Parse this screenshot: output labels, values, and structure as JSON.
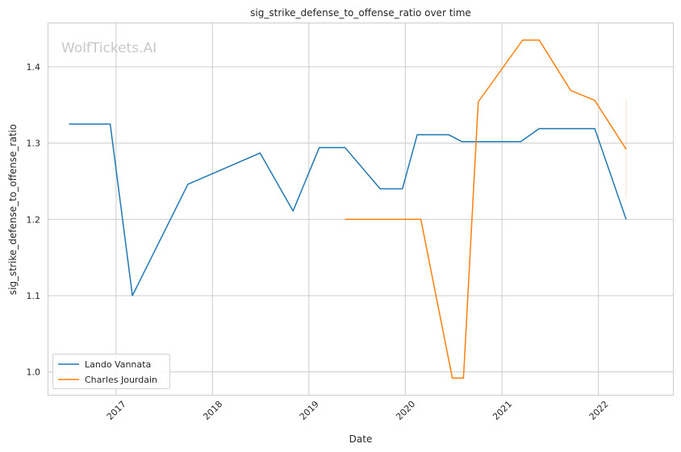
{
  "chart_data": {
    "type": "line",
    "title": "sig_strike_defense_to_offense_ratio over time",
    "xlabel": "Date",
    "ylabel": "sig_strike_defense_to_offense_ratio",
    "watermark": "WolfTickets.AI",
    "x_ticks": [
      "2017",
      "2018",
      "2019",
      "2020",
      "2021",
      "2022"
    ],
    "y_ticks": [
      "1.0",
      "1.1",
      "1.2",
      "1.3",
      "1.4"
    ],
    "ylim": [
      0.97,
      1.457
    ],
    "xlim": [
      "2016-04-20",
      "2022-10-10"
    ],
    "grid": true,
    "legend_position": "lower-left",
    "series": [
      {
        "name": "Lando Vannata",
        "color": "#1f77b4",
        "points": [
          {
            "x": "2016-07-07",
            "y": 1.325
          },
          {
            "x": "2016-12-10",
            "y": 1.325
          },
          {
            "x": "2017-03-04",
            "y": 1.1
          },
          {
            "x": "2017-09-30",
            "y": 1.246
          },
          {
            "x": "2018-06-30",
            "y": 1.287
          },
          {
            "x": "2018-11-02",
            "y": 1.211
          },
          {
            "x": "2019-02-09",
            "y": 1.294
          },
          {
            "x": "2019-05-18",
            "y": 1.294
          },
          {
            "x": "2019-09-28",
            "y": 1.24
          },
          {
            "x": "2019-12-21",
            "y": 1.24
          },
          {
            "x": "2020-02-15",
            "y": 1.311
          },
          {
            "x": "2020-06-13",
            "y": 1.311
          },
          {
            "x": "2020-08-01",
            "y": 1.302
          },
          {
            "x": "2021-03-13",
            "y": 1.302
          },
          {
            "x": "2021-05-22",
            "y": 1.319
          },
          {
            "x": "2021-12-18",
            "y": 1.319
          },
          {
            "x": "2022-04-16",
            "y": 1.2
          }
        ]
      },
      {
        "name": "Charles Jourdain",
        "color": "#ff7f0e",
        "points": [
          {
            "x": "2019-05-18",
            "y": 1.2
          },
          {
            "x": "2020-02-29",
            "y": 1.2
          },
          {
            "x": "2020-06-27",
            "y": 0.992
          },
          {
            "x": "2020-08-08",
            "y": 0.992
          },
          {
            "x": "2020-10-03",
            "y": 1.354
          },
          {
            "x": "2021-03-20",
            "y": 1.435
          },
          {
            "x": "2021-05-22",
            "y": 1.435
          },
          {
            "x": "2021-09-18",
            "y": 1.369
          },
          {
            "x": "2021-12-18",
            "y": 1.356
          },
          {
            "x": "2022-04-16",
            "y": 1.292
          }
        ]
      }
    ],
    "error_bar": {
      "x": "2022-04-16",
      "y_low": 1.228,
      "y_high": 1.357,
      "color": "#ff7f0e"
    }
  }
}
